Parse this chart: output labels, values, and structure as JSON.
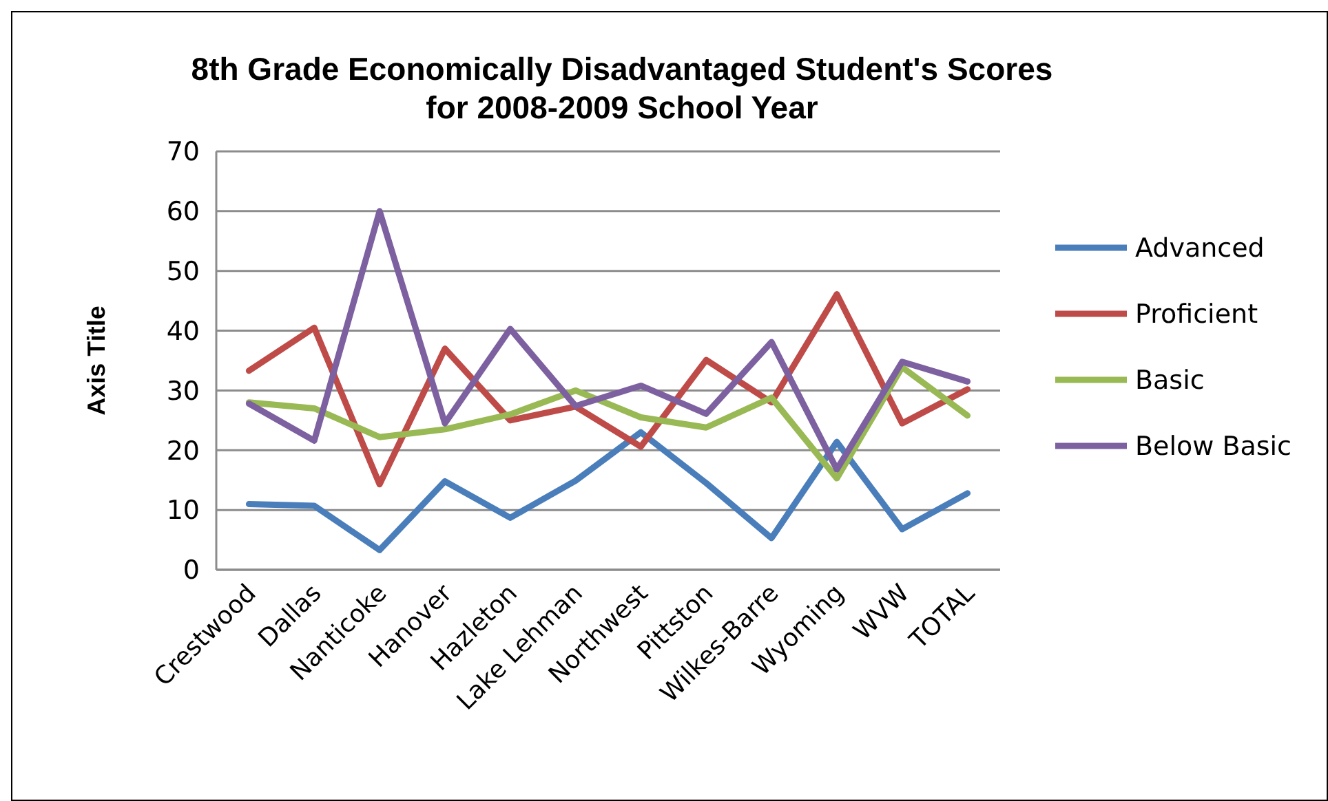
{
  "chart_data": {
    "type": "line",
    "title": "8th Grade Economically Disadvantaged Student's Scores for 2008-2009 School Year",
    "ylabel": "Axis Title",
    "categories": [
      "Crestwood",
      "Dallas",
      "Nanticoke",
      "Hanover",
      "Hazleton",
      "Lake Lehman",
      "Northwest",
      "Pittston",
      "Wilkes-Barre",
      "Wyoming",
      "WVW",
      "TOTAL"
    ],
    "series": [
      {
        "name": "Advanced",
        "color": "#4a7ebb",
        "values": [
          11,
          10.7,
          3.3,
          14.8,
          8.7,
          14.9,
          23,
          14.5,
          5.3,
          21.4,
          6.8,
          12.8
        ]
      },
      {
        "name": "Proficient",
        "color": "#be4b48",
        "values": [
          33.3,
          40.5,
          14.3,
          37,
          25,
          27.3,
          20.6,
          35.1,
          28,
          46.1,
          24.5,
          30.2
        ]
      },
      {
        "name": "Basic",
        "color": "#98b954",
        "values": [
          28,
          27,
          22.2,
          23.5,
          26,
          30,
          25.5,
          23.8,
          28.8,
          15.3,
          33.9,
          25.8
        ]
      },
      {
        "name": "Below Basic",
        "color": "#7d60a0",
        "values": [
          27.8,
          21.6,
          60,
          24.5,
          40.3,
          27.4,
          30.8,
          26.1,
          38.1,
          16.8,
          34.8,
          31.5
        ]
      }
    ],
    "ylim": [
      0,
      70
    ],
    "yticks": [
      0,
      10,
      20,
      30,
      40,
      50,
      60,
      70
    ],
    "grid": "y",
    "legend": "right",
    "marker": "none",
    "line_style": "solid"
  }
}
